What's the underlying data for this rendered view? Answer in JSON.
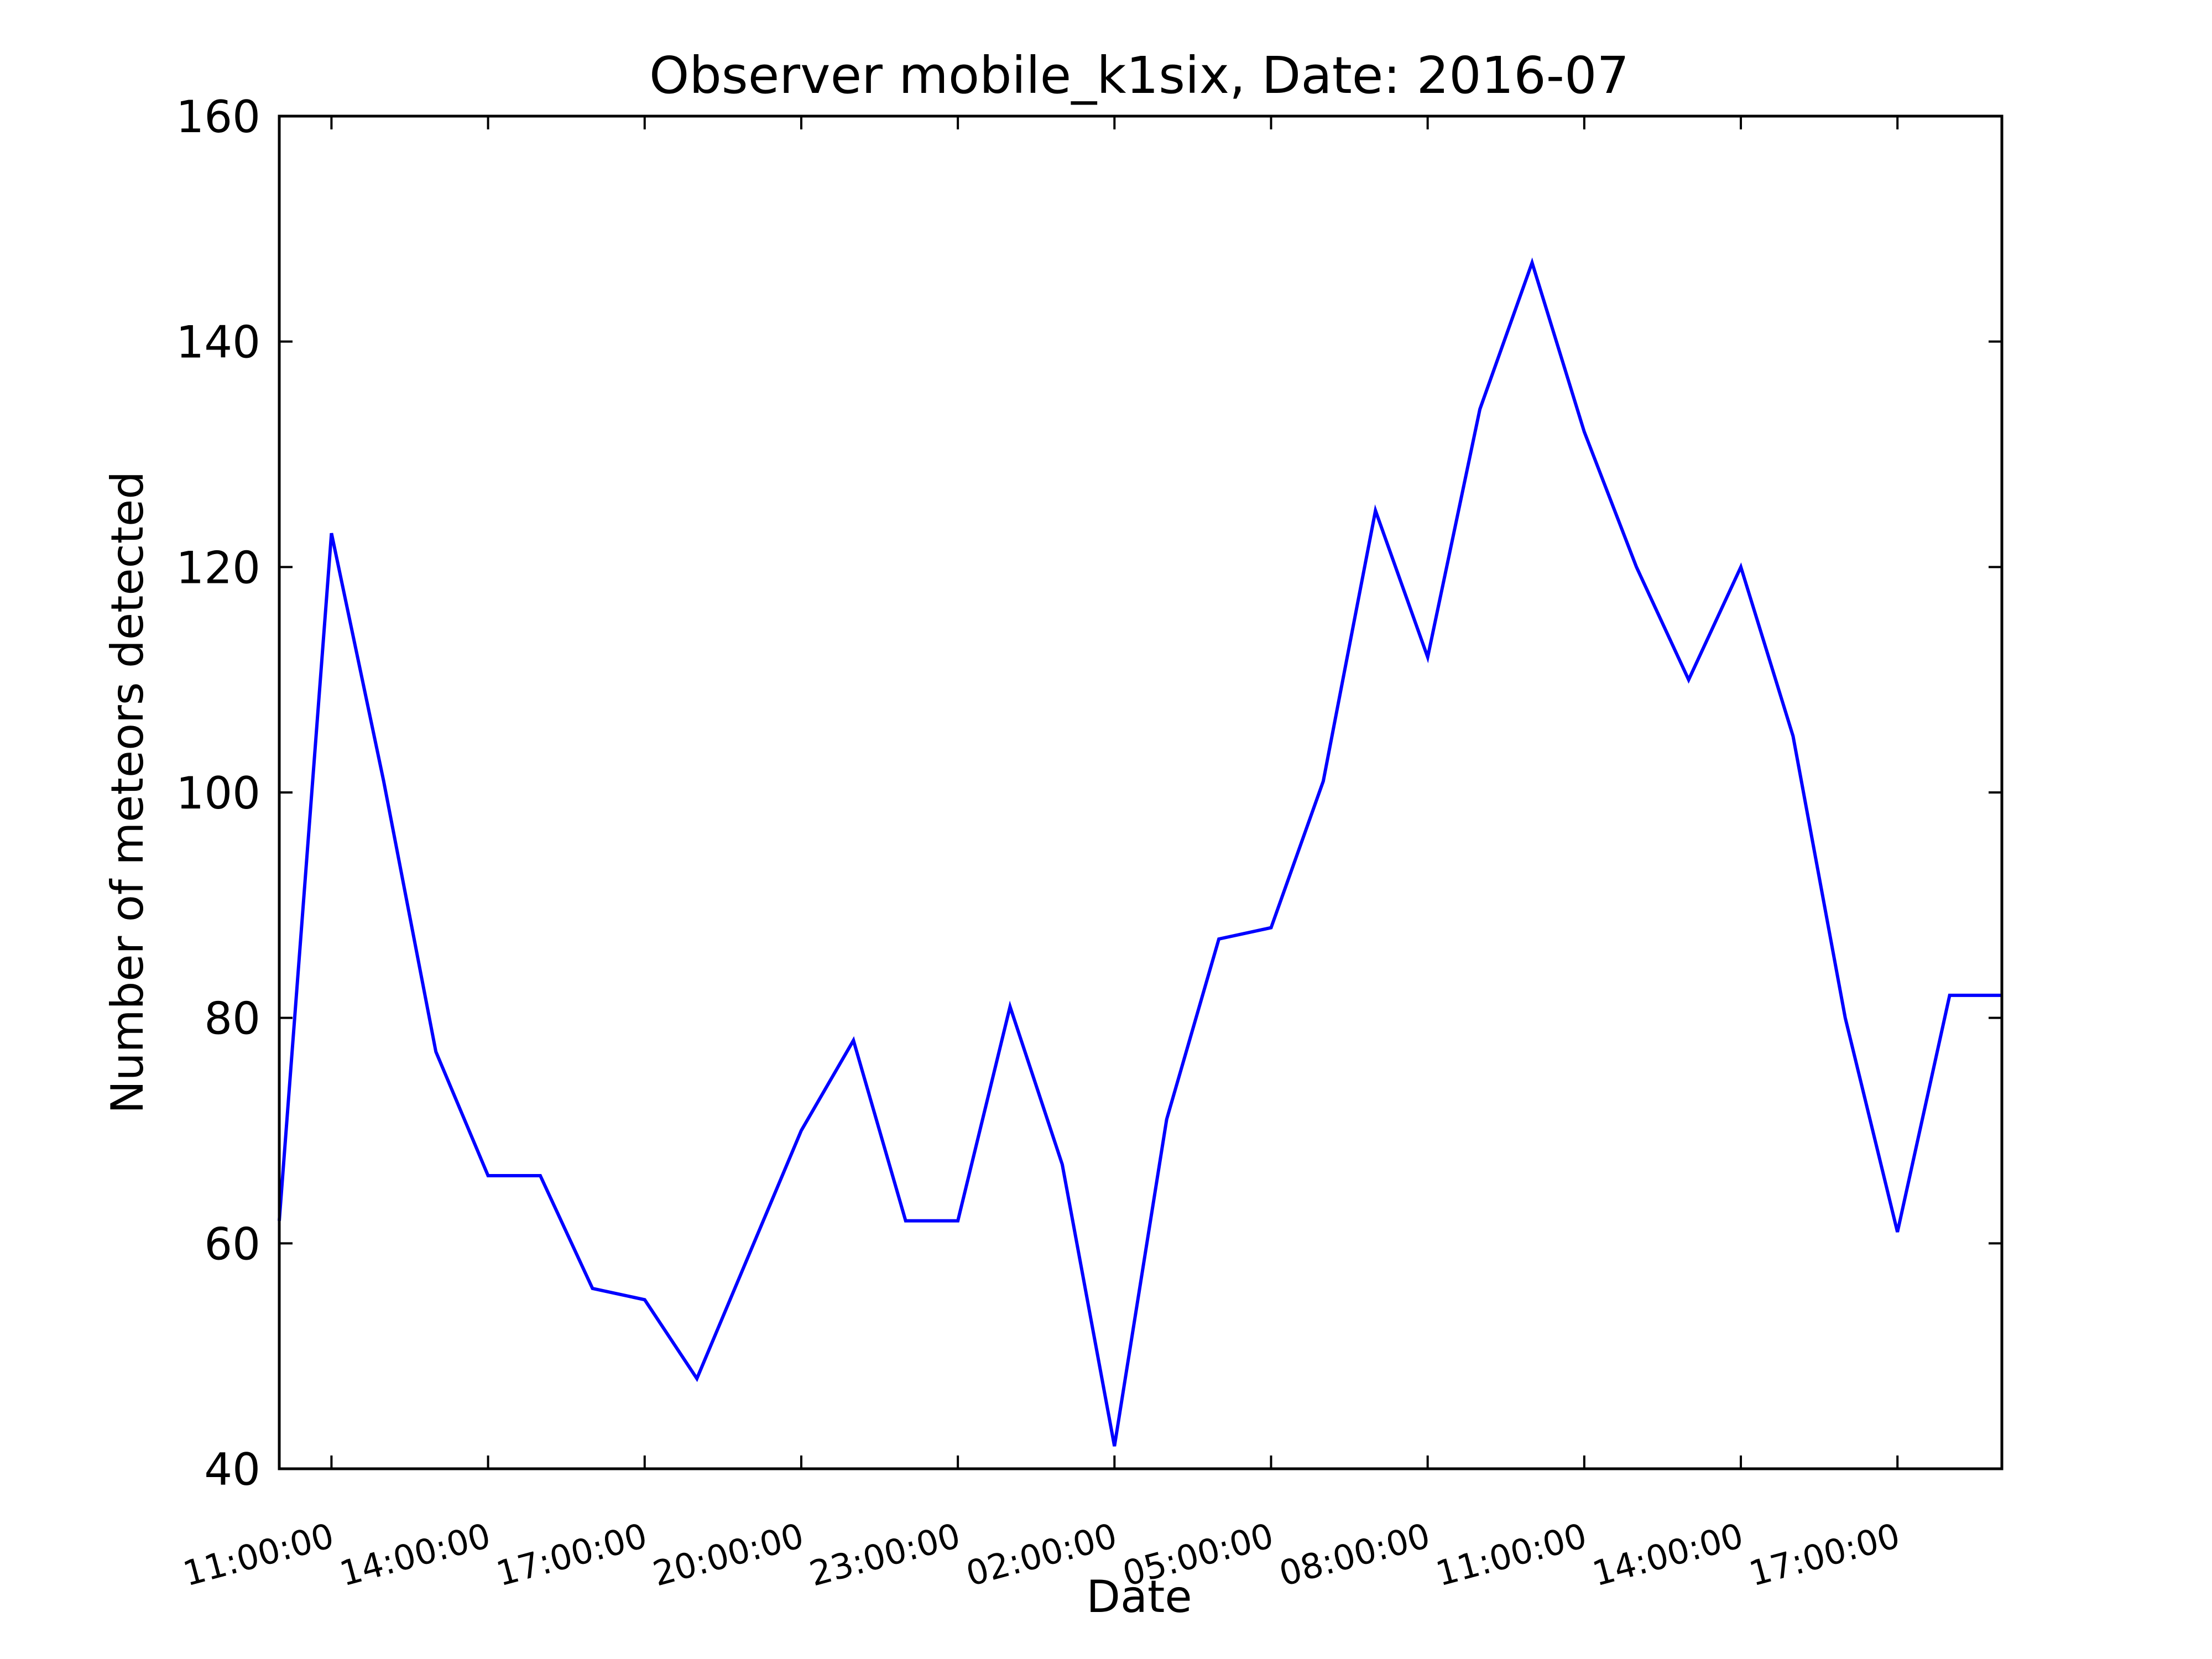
{
  "chart_data": {
    "type": "line",
    "title": "Observer mobile_k1six, Date: 2016-07",
    "xlabel": "Date",
    "ylabel": "Number of meteors detected",
    "ylim": [
      40,
      160
    ],
    "yticks": [
      40,
      60,
      80,
      100,
      120,
      140,
      160
    ],
    "xlim": [
      "10:00:00",
      "19:00:00 (next day)"
    ],
    "xticks": [
      "11:00:00",
      "14:00:00",
      "17:00:00",
      "20:00:00",
      "23:00:00",
      "02:00:00",
      "05:00:00",
      "08:00:00",
      "11:00:00",
      "14:00:00",
      "17:00:00"
    ],
    "grid": false,
    "line_color": "#0000ff",
    "series": [
      {
        "x": [
          "10:00:00",
          "11:00:00",
          "12:00:00",
          "13:00:00",
          "14:00:00",
          "15:00:00",
          "16:00:00",
          "17:00:00",
          "18:00:00",
          "19:00:00",
          "20:00:00",
          "21:00:00",
          "22:00:00",
          "23:00:00",
          "00:00:00",
          "01:00:00",
          "02:00:00",
          "03:00:00",
          "04:00:00",
          "05:00:00",
          "06:00:00",
          "07:00:00",
          "08:00:00",
          "09:00:00",
          "10:00:00",
          "11:00:00",
          "12:00:00",
          "13:00:00",
          "14:00:00",
          "15:00:00",
          "16:00:00",
          "17:00:00",
          "18:00:00",
          "19:00:00"
        ],
        "values": [
          62,
          123,
          101,
          77,
          66,
          66,
          56,
          55,
          48,
          59,
          70,
          78,
          62,
          62,
          81,
          67,
          42,
          71,
          87,
          88,
          101,
          125,
          112,
          134,
          147,
          132,
          120,
          110,
          120,
          105,
          80,
          61,
          82,
          82
        ]
      }
    ]
  }
}
